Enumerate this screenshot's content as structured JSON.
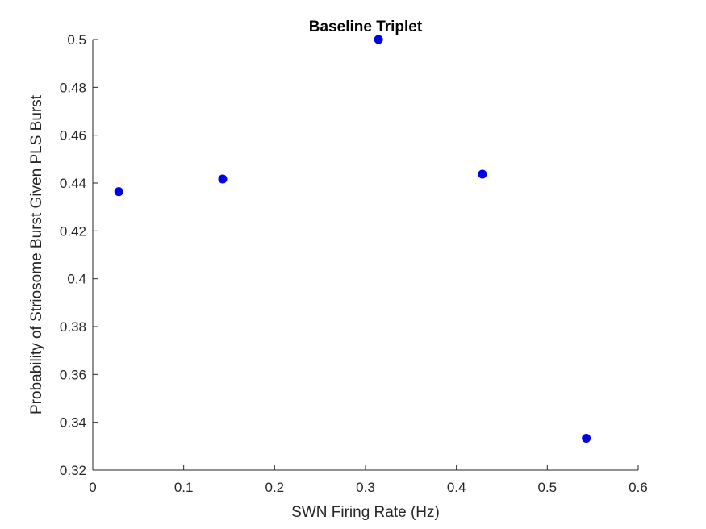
{
  "chart_data": {
    "type": "scatter",
    "title": "Baseline Triplet",
    "xlabel": "SWN Firing Rate (Hz)",
    "ylabel": "Probability of Striosome Burst Given PLS Burst",
    "xlim": [
      0,
      0.6
    ],
    "ylim": [
      0.32,
      0.5
    ],
    "xticks": [
      0,
      0.1,
      0.2,
      0.3,
      0.4,
      0.5,
      0.6
    ],
    "yticks": [
      0.32,
      0.34,
      0.36,
      0.38,
      0.4,
      0.42,
      0.44,
      0.46,
      0.48,
      0.5
    ],
    "xtick_labels": [
      "0",
      "0.1",
      "0.2",
      "0.3",
      "0.4",
      "0.5",
      "0.6"
    ],
    "ytick_labels": [
      "0.32",
      "0.34",
      "0.36",
      "0.38",
      "0.4",
      "0.42",
      "0.44",
      "0.46",
      "0.48",
      "0.5"
    ],
    "grid": false,
    "marker_color": "#0000e6",
    "series": [
      {
        "x": [
          0.0286,
          0.1429,
          0.3143,
          0.4286,
          0.5429
        ],
        "y": [
          0.4364,
          0.4417,
          0.5,
          0.4437,
          0.3333
        ]
      }
    ]
  }
}
